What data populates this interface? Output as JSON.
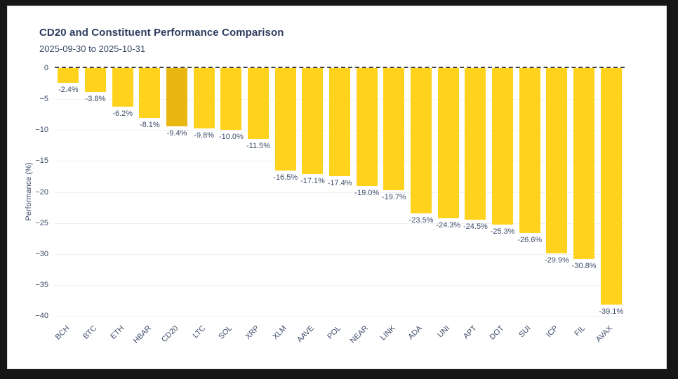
{
  "window": {
    "frame_color": "#161616",
    "panel_color": "#ffffff"
  },
  "header": {
    "title": "CD20 and Constituent Performance Comparison",
    "subtitle": "2025-09-30 to 2025-10-31"
  },
  "colors": {
    "bar": "#FFD21E",
    "highlight_bar": "#E9B612",
    "title_text": "#2D3C5E",
    "label_text": "#3E4C6B",
    "grid": "#EEF0F5",
    "zero_line": "#424242"
  },
  "chart_data": {
    "type": "bar",
    "title": "CD20 and Constituent Performance Comparison",
    "subtitle": "2025-09-30 to 2025-10-31",
    "categories": [
      "BCH",
      "BTC",
      "ETH",
      "HBAR",
      "CD20",
      "LTC",
      "SOL",
      "XRP",
      "XLM",
      "AAVE",
      "POL",
      "NEAR",
      "LINK",
      "ADA",
      "UNI",
      "APT",
      "DOT",
      "SUI",
      "ICP",
      "FIL",
      "AVAX"
    ],
    "values": [
      -2.4,
      -3.8,
      -6.2,
      -8.1,
      -9.4,
      -9.8,
      -10.0,
      -11.5,
      -16.5,
      -17.1,
      -17.4,
      -19.0,
      -19.7,
      -23.5,
      -24.3,
      -24.5,
      -25.3,
      -26.6,
      -29.9,
      -30.8,
      -39.1
    ],
    "labels": [
      "-2.4%",
      "-3.8%",
      "-6.2%",
      "-8.1%",
      "-9.4%",
      "-9.8%",
      "-10.0%",
      "-11.5%",
      "-16.5%",
      "-17.1%",
      "-17.4%",
      "-19.0%",
      "-19.7%",
      "-23.5%",
      "-24.3%",
      "-24.5%",
      "-25.3%",
      "-26.6%",
      "-29.9%",
      "-30.8%",
      "-39.1%"
    ],
    "highlight_category": "CD20",
    "ylabel": "Performance (%)",
    "xlabel": "",
    "ylim": [
      -40,
      0
    ],
    "yticks": [
      0,
      -5,
      -10,
      -15,
      -20,
      -25,
      -30,
      -35,
      -40
    ],
    "ytick_labels": [
      "0",
      "−5",
      "−10",
      "−15",
      "−20",
      "−25",
      "−30",
      "−35",
      "−40"
    ],
    "grid": true,
    "legend": "none",
    "zero_line_style": "dashed"
  }
}
